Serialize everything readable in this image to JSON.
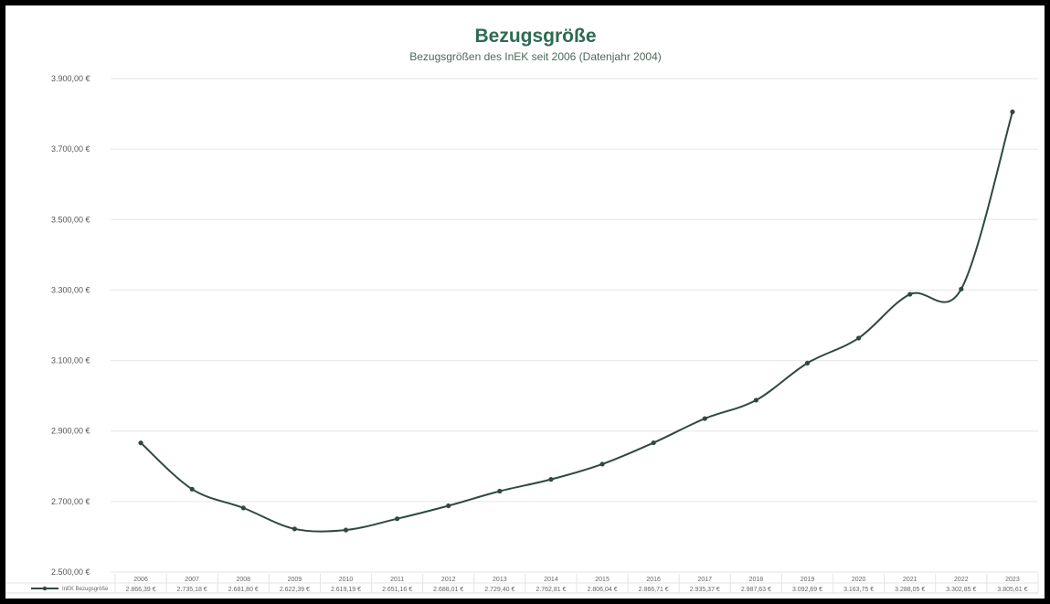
{
  "chart_data": {
    "type": "line",
    "title": "Bezugsgröße",
    "subtitle": "Bezugsgrößen des InEK seit 2006 (Datenjahr 2004)",
    "ylim": [
      2500,
      3900
    ],
    "y_ticks": [
      "2.500,00 €",
      "2.700,00 €",
      "2.900,00 €",
      "3.100,00 €",
      "3.300,00 €",
      "3.500,00 €",
      "3.700,00 €",
      "3.900,00 €"
    ],
    "y_tick_values": [
      2500,
      2700,
      2900,
      3100,
      3300,
      3500,
      3700,
      3900
    ],
    "categories": [
      "2006",
      "2007",
      "2008",
      "2009",
      "2010",
      "2011",
      "2012",
      "2013",
      "2014",
      "2015",
      "2016",
      "2017",
      "2018",
      "2019",
      "2020",
      "2021",
      "2022",
      "2023"
    ],
    "series": [
      {
        "name": "InEK Bezugsgröße",
        "values": [
          2866.39,
          2735.18,
          2681.8,
          2622.39,
          2619.19,
          2651.16,
          2688.01,
          2729.4,
          2762.81,
          2806.04,
          2866.71,
          2935.37,
          2987.63,
          3092.69,
          3163.75,
          3288.05,
          3302.85,
          3805.61
        ],
        "value_labels": [
          "2.866,39 €",
          "2.735,18 €",
          "2.681,80 €",
          "2.622,39 €",
          "2.619,19 €",
          "2.651,16 €",
          "2.688,01 €",
          "2.729,40 €",
          "2.762,81 €",
          "2.806,04 €",
          "2.866,71 €",
          "2.935,37 €",
          "2.987,63 €",
          "3.092,69 €",
          "3.163,75 €",
          "3.288,05 €",
          "3.302,85 €",
          "3.805,61 €"
        ]
      }
    ],
    "grid": true,
    "legend": "bottom-left in data table",
    "colors": {
      "line": "#2f4a3c",
      "title": "#2e6b50",
      "grid": "#e6e6e6",
      "background": "#ffffff"
    }
  }
}
